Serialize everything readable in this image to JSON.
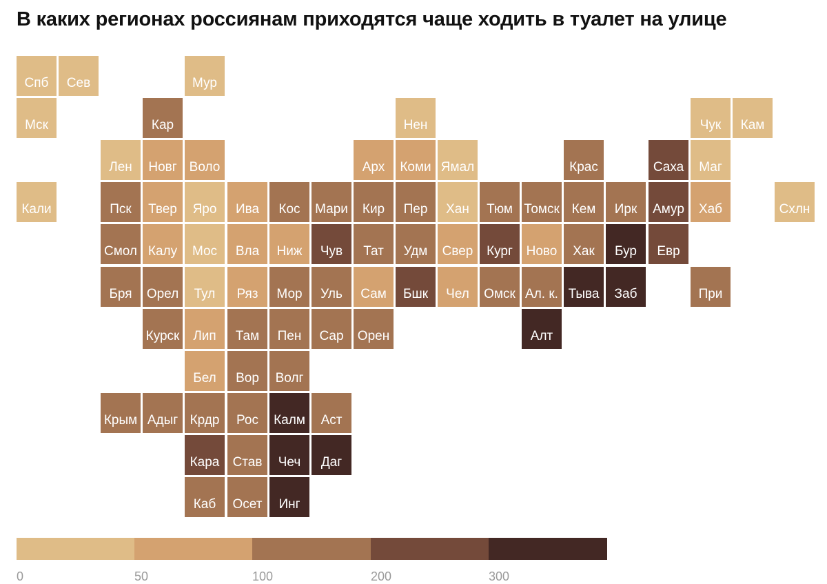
{
  "title": "В каких регионах россиянам приходятся чаще ходить в туалет на улице",
  "colors": {
    "level0": "#dfbc87",
    "level1": "#d4a270",
    "level2": "#a37452",
    "level3": "#744a3a",
    "level4": "#432824"
  },
  "chart_data": {
    "type": "heatmap",
    "legend": {
      "breaks": [
        0,
        50,
        100,
        200,
        300
      ],
      "labels": [
        "0",
        "50",
        "100",
        "200",
        "300"
      ]
    },
    "tiles": [
      {
        "label": "Спб",
        "row": 0,
        "col": 0,
        "level": 0
      },
      {
        "label": "Сев",
        "row": 0,
        "col": 1,
        "level": 0
      },
      {
        "label": "Мур",
        "row": 0,
        "col": 4,
        "level": 0
      },
      {
        "label": "Мск",
        "row": 1,
        "col": 0,
        "level": 0
      },
      {
        "label": "Кар",
        "row": 1,
        "col": 3,
        "level": 2
      },
      {
        "label": "Нен",
        "row": 1,
        "col": 9,
        "level": 0
      },
      {
        "label": "Чук",
        "row": 1,
        "col": 16,
        "level": 0
      },
      {
        "label": "Кам",
        "row": 1,
        "col": 17,
        "level": 0
      },
      {
        "label": "Лен",
        "row": 2,
        "col": 2,
        "level": 0
      },
      {
        "label": "Новг",
        "row": 2,
        "col": 3,
        "level": 1
      },
      {
        "label": "Воло",
        "row": 2,
        "col": 4,
        "level": 1
      },
      {
        "label": "Арх",
        "row": 2,
        "col": 8,
        "level": 1
      },
      {
        "label": "Коми",
        "row": 2,
        "col": 9,
        "level": 1
      },
      {
        "label": "Ямал",
        "row": 2,
        "col": 10,
        "level": 0
      },
      {
        "label": "Крас",
        "row": 2,
        "col": 13,
        "level": 2
      },
      {
        "label": "Саха",
        "row": 2,
        "col": 15,
        "level": 3
      },
      {
        "label": "Маг",
        "row": 2,
        "col": 16,
        "level": 0
      },
      {
        "label": "Кали",
        "row": 3,
        "col": 0,
        "level": 0
      },
      {
        "label": "Пск",
        "row": 3,
        "col": 2,
        "level": 2
      },
      {
        "label": "Твер",
        "row": 3,
        "col": 3,
        "level": 1
      },
      {
        "label": "Яро",
        "row": 3,
        "col": 4,
        "level": 0
      },
      {
        "label": "Ива",
        "row": 3,
        "col": 5,
        "level": 1
      },
      {
        "label": "Кос",
        "row": 3,
        "col": 6,
        "level": 2
      },
      {
        "label": "Мари",
        "row": 3,
        "col": 7,
        "level": 2
      },
      {
        "label": "Кир",
        "row": 3,
        "col": 8,
        "level": 2
      },
      {
        "label": "Пер",
        "row": 3,
        "col": 9,
        "level": 2
      },
      {
        "label": "Хан",
        "row": 3,
        "col": 10,
        "level": 0
      },
      {
        "label": "Тюм",
        "row": 3,
        "col": 11,
        "level": 2
      },
      {
        "label": "Томск",
        "row": 3,
        "col": 12,
        "level": 2
      },
      {
        "label": "Кем",
        "row": 3,
        "col": 13,
        "level": 2
      },
      {
        "label": "Ирк",
        "row": 3,
        "col": 14,
        "level": 2
      },
      {
        "label": "Амур",
        "row": 3,
        "col": 15,
        "level": 3
      },
      {
        "label": "Хаб",
        "row": 3,
        "col": 16,
        "level": 1
      },
      {
        "label": "Схлн",
        "row": 3,
        "col": 18,
        "level": 0
      },
      {
        "label": "Смол",
        "row": 4,
        "col": 2,
        "level": 2
      },
      {
        "label": "Калу",
        "row": 4,
        "col": 3,
        "level": 1
      },
      {
        "label": "Мос",
        "row": 4,
        "col": 4,
        "level": 0
      },
      {
        "label": "Вла",
        "row": 4,
        "col": 5,
        "level": 1
      },
      {
        "label": "Ниж",
        "row": 4,
        "col": 6,
        "level": 1
      },
      {
        "label": "Чув",
        "row": 4,
        "col": 7,
        "level": 3
      },
      {
        "label": "Тат",
        "row": 4,
        "col": 8,
        "level": 2
      },
      {
        "label": "Удм",
        "row": 4,
        "col": 9,
        "level": 2
      },
      {
        "label": "Свер",
        "row": 4,
        "col": 10,
        "level": 1
      },
      {
        "label": "Кург",
        "row": 4,
        "col": 11,
        "level": 3
      },
      {
        "label": "Ново",
        "row": 4,
        "col": 12,
        "level": 1
      },
      {
        "label": "Хак",
        "row": 4,
        "col": 13,
        "level": 2
      },
      {
        "label": "Бур",
        "row": 4,
        "col": 14,
        "level": 4
      },
      {
        "label": "Евр",
        "row": 4,
        "col": 15,
        "level": 3
      },
      {
        "label": "Бря",
        "row": 5,
        "col": 2,
        "level": 2
      },
      {
        "label": "Орел",
        "row": 5,
        "col": 3,
        "level": 2
      },
      {
        "label": "Тул",
        "row": 5,
        "col": 4,
        "level": 0
      },
      {
        "label": "Ряз",
        "row": 5,
        "col": 5,
        "level": 1
      },
      {
        "label": "Мор",
        "row": 5,
        "col": 6,
        "level": 2
      },
      {
        "label": "Уль",
        "row": 5,
        "col": 7,
        "level": 2
      },
      {
        "label": "Сам",
        "row": 5,
        "col": 8,
        "level": 1
      },
      {
        "label": "Бшк",
        "row": 5,
        "col": 9,
        "level": 3
      },
      {
        "label": "Чел",
        "row": 5,
        "col": 10,
        "level": 1
      },
      {
        "label": "Омск",
        "row": 5,
        "col": 11,
        "level": 2
      },
      {
        "label": "Ал. к.",
        "row": 5,
        "col": 12,
        "level": 2
      },
      {
        "label": "Тыва",
        "row": 5,
        "col": 13,
        "level": 4
      },
      {
        "label": "Заб",
        "row": 5,
        "col": 14,
        "level": 4
      },
      {
        "label": "При",
        "row": 5,
        "col": 16,
        "level": 2
      },
      {
        "label": "Курск",
        "row": 6,
        "col": 3,
        "level": 2
      },
      {
        "label": "Лип",
        "row": 6,
        "col": 4,
        "level": 1
      },
      {
        "label": "Там",
        "row": 6,
        "col": 5,
        "level": 2
      },
      {
        "label": "Пен",
        "row": 6,
        "col": 6,
        "level": 2
      },
      {
        "label": "Сар",
        "row": 6,
        "col": 7,
        "level": 2
      },
      {
        "label": "Орен",
        "row": 6,
        "col": 8,
        "level": 2
      },
      {
        "label": "Алт",
        "row": 6,
        "col": 12,
        "level": 4
      },
      {
        "label": "Бел",
        "row": 7,
        "col": 4,
        "level": 1
      },
      {
        "label": "Вор",
        "row": 7,
        "col": 5,
        "level": 2
      },
      {
        "label": "Волг",
        "row": 7,
        "col": 6,
        "level": 2
      },
      {
        "label": "Крым",
        "row": 8,
        "col": 2,
        "level": 2
      },
      {
        "label": "Адыг",
        "row": 8,
        "col": 3,
        "level": 2
      },
      {
        "label": "Крдр",
        "row": 8,
        "col": 4,
        "level": 2
      },
      {
        "label": "Рос",
        "row": 8,
        "col": 5,
        "level": 2
      },
      {
        "label": "Калм",
        "row": 8,
        "col": 6,
        "level": 4
      },
      {
        "label": "Аст",
        "row": 8,
        "col": 7,
        "level": 2
      },
      {
        "label": "Кара",
        "row": 9,
        "col": 4,
        "level": 3
      },
      {
        "label": "Став",
        "row": 9,
        "col": 5,
        "level": 2
      },
      {
        "label": "Чеч",
        "row": 9,
        "col": 6,
        "level": 4
      },
      {
        "label": "Даг",
        "row": 9,
        "col": 7,
        "level": 4
      },
      {
        "label": "Каб",
        "row": 10,
        "col": 4,
        "level": 2
      },
      {
        "label": "Осет",
        "row": 10,
        "col": 5,
        "level": 2
      },
      {
        "label": "Инг",
        "row": 10,
        "col": 6,
        "level": 4
      }
    ]
  }
}
